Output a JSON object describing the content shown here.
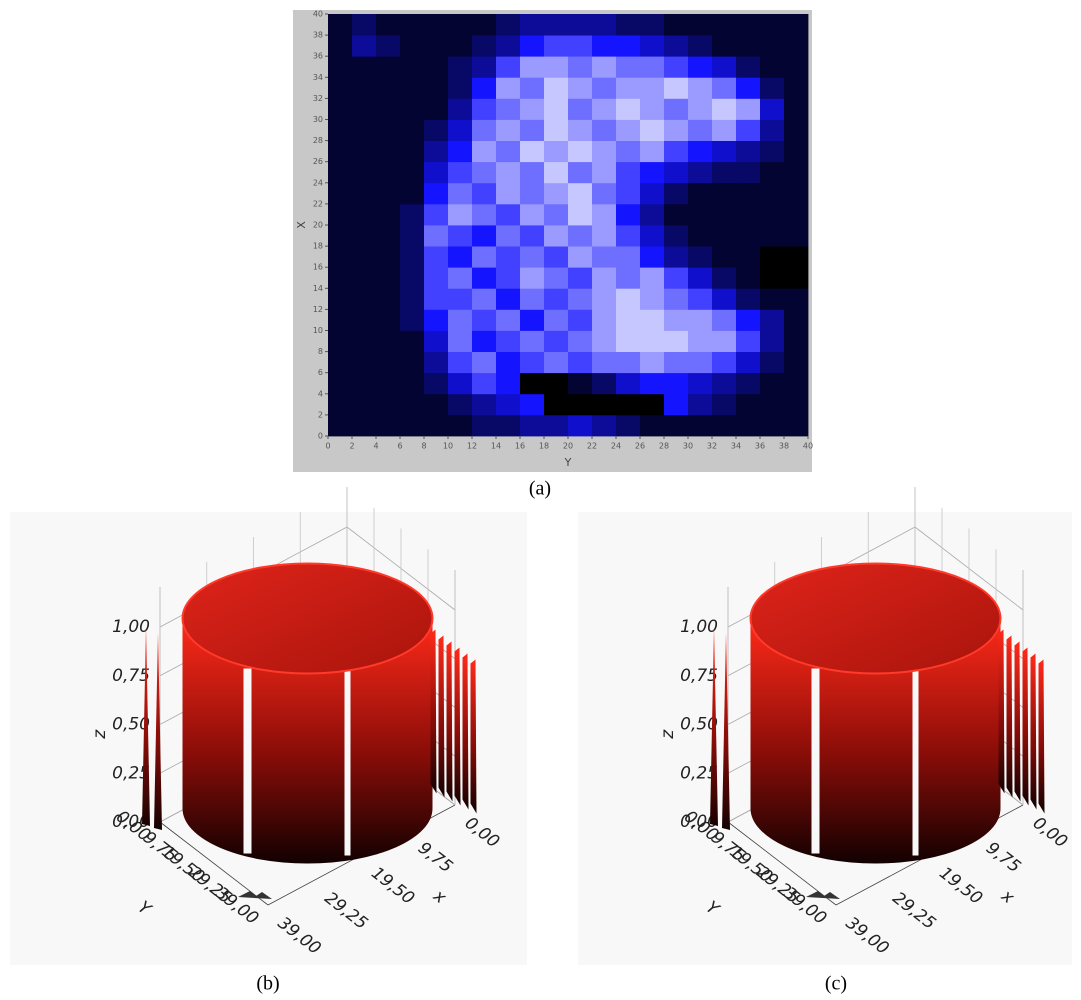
{
  "chart_data": [
    {
      "type": "heatmap",
      "caption": "(a)",
      "xlabel": "Y",
      "ylabel": "X",
      "xlim": [
        0,
        40
      ],
      "ylim": [
        0,
        40
      ],
      "xticks": [
        0,
        2,
        4,
        6,
        8,
        10,
        12,
        14,
        16,
        18,
        20,
        22,
        24,
        26,
        28,
        30,
        32,
        34,
        36,
        38,
        40
      ],
      "yticks": [
        0,
        2,
        4,
        6,
        8,
        10,
        12,
        14,
        16,
        18,
        20,
        22,
        24,
        26,
        28,
        30,
        32,
        34,
        36,
        38,
        40
      ],
      "xbins": [
        0,
        2,
        4,
        6,
        8,
        10,
        12,
        14,
        16,
        18,
        20,
        22,
        24,
        26,
        28,
        30,
        32,
        34,
        36,
        38,
        40
      ],
      "ybins": [
        0,
        2,
        4,
        6,
        8,
        10,
        12,
        14,
        16,
        18,
        20,
        22,
        24,
        26,
        28,
        30,
        32,
        34,
        36,
        38,
        40
      ],
      "colors": [
        "#000000",
        "#1414ff",
        "#f4f4ff"
      ],
      "z": [
        [
          0.1,
          0.1,
          0.1,
          0.1,
          0.1,
          0.1,
          0.2,
          0.2,
          0.3,
          0.3,
          0.4,
          0.3,
          0.2,
          0.1,
          0.1,
          0.1,
          0.1,
          0.1,
          0.1,
          0.1
        ],
        [
          0.1,
          0.1,
          0.1,
          0.1,
          0.1,
          0.2,
          0.3,
          0.4,
          0.5,
          0.0,
          0.0,
          0.0,
          0.0,
          0.0,
          0.5,
          0.3,
          0.2,
          0.1,
          0.1,
          0.1
        ],
        [
          0.1,
          0.1,
          0.1,
          0.1,
          0.2,
          0.4,
          0.6,
          0.5,
          0.0,
          0.0,
          0.1,
          0.2,
          0.4,
          0.5,
          0.5,
          0.4,
          0.3,
          0.2,
          0.1,
          0.1
        ],
        [
          0.1,
          0.1,
          0.1,
          0.1,
          0.3,
          0.6,
          0.7,
          0.5,
          0.6,
          0.7,
          0.6,
          0.7,
          0.7,
          0.8,
          0.7,
          0.7,
          0.6,
          0.4,
          0.2,
          0.1
        ],
        [
          0.1,
          0.1,
          0.1,
          0.1,
          0.4,
          0.7,
          0.5,
          0.6,
          0.7,
          0.6,
          0.7,
          0.8,
          0.9,
          0.9,
          0.9,
          0.8,
          0.8,
          0.6,
          0.3,
          0.1
        ],
        [
          0.1,
          0.1,
          0.1,
          0.2,
          0.5,
          0.7,
          0.6,
          0.7,
          0.5,
          0.7,
          0.6,
          0.8,
          0.9,
          0.9,
          0.8,
          0.8,
          0.7,
          0.5,
          0.3,
          0.1
        ],
        [
          0.1,
          0.1,
          0.1,
          0.2,
          0.6,
          0.6,
          0.7,
          0.5,
          0.7,
          0.6,
          0.7,
          0.8,
          0.9,
          0.8,
          0.7,
          0.6,
          0.4,
          0.2,
          0.1,
          0.1
        ],
        [
          0.1,
          0.1,
          0.1,
          0.2,
          0.6,
          0.7,
          0.5,
          0.6,
          0.8,
          0.7,
          0.6,
          0.8,
          0.7,
          0.8,
          0.6,
          0.4,
          0.2,
          0.1,
          0.0,
          0.0
        ],
        [
          0.1,
          0.1,
          0.1,
          0.2,
          0.6,
          0.5,
          0.7,
          0.6,
          0.7,
          0.6,
          0.8,
          0.7,
          0.7,
          0.5,
          0.3,
          0.2,
          0.1,
          0.1,
          0.0,
          0.0
        ],
        [
          0.1,
          0.1,
          0.1,
          0.2,
          0.7,
          0.6,
          0.5,
          0.7,
          0.6,
          0.8,
          0.7,
          0.8,
          0.6,
          0.4,
          0.2,
          0.1,
          0.1,
          0.1,
          0.1,
          0.1
        ],
        [
          0.1,
          0.1,
          0.1,
          0.2,
          0.6,
          0.8,
          0.7,
          0.6,
          0.8,
          0.7,
          0.9,
          0.8,
          0.5,
          0.3,
          0.1,
          0.1,
          0.1,
          0.1,
          0.1,
          0.1
        ],
        [
          0.1,
          0.1,
          0.1,
          0.1,
          0.5,
          0.7,
          0.6,
          0.8,
          0.7,
          0.8,
          0.9,
          0.7,
          0.6,
          0.4,
          0.2,
          0.1,
          0.1,
          0.1,
          0.1,
          0.1
        ],
        [
          0.1,
          0.1,
          0.1,
          0.1,
          0.4,
          0.6,
          0.7,
          0.8,
          0.7,
          0.9,
          0.7,
          0.8,
          0.6,
          0.5,
          0.4,
          0.3,
          0.2,
          0.2,
          0.1,
          0.1
        ],
        [
          0.1,
          0.1,
          0.1,
          0.1,
          0.3,
          0.5,
          0.8,
          0.7,
          0.9,
          0.8,
          0.9,
          0.8,
          0.7,
          0.8,
          0.6,
          0.5,
          0.4,
          0.3,
          0.2,
          0.1
        ],
        [
          0.1,
          0.1,
          0.1,
          0.1,
          0.2,
          0.4,
          0.7,
          0.8,
          0.7,
          0.9,
          0.8,
          0.7,
          0.8,
          0.9,
          0.8,
          0.7,
          0.8,
          0.6,
          0.3,
          0.1
        ],
        [
          0.1,
          0.1,
          0.1,
          0.1,
          0.1,
          0.3,
          0.6,
          0.7,
          0.8,
          0.9,
          0.7,
          0.8,
          0.9,
          0.8,
          0.7,
          0.8,
          0.9,
          0.8,
          0.4,
          0.1
        ],
        [
          0.1,
          0.1,
          0.1,
          0.1,
          0.1,
          0.2,
          0.5,
          0.8,
          0.7,
          0.9,
          0.8,
          0.7,
          0.8,
          0.8,
          0.9,
          0.8,
          0.7,
          0.5,
          0.2,
          0.1
        ],
        [
          0.1,
          0.1,
          0.1,
          0.1,
          0.1,
          0.2,
          0.3,
          0.6,
          0.8,
          0.8,
          0.7,
          0.8,
          0.7,
          0.7,
          0.6,
          0.5,
          0.4,
          0.2,
          0.1,
          0.1
        ],
        [
          0.1,
          0.3,
          0.2,
          0.1,
          0.1,
          0.1,
          0.2,
          0.3,
          0.5,
          0.6,
          0.6,
          0.5,
          0.5,
          0.4,
          0.3,
          0.2,
          0.1,
          0.1,
          0.1,
          0.1
        ],
        [
          0.1,
          0.2,
          0.1,
          0.1,
          0.1,
          0.1,
          0.1,
          0.2,
          0.3,
          0.3,
          0.3,
          0.3,
          0.2,
          0.2,
          0.1,
          0.1,
          0.1,
          0.1,
          0.1,
          0.1
        ]
      ]
    },
    {
      "type": "surface3d",
      "caption": "(b)",
      "xlabel": "x",
      "ylabel": "Y",
      "zlabel": "z",
      "color": "#d81a10",
      "xlim": [
        0,
        39
      ],
      "ylim": [
        0,
        39
      ],
      "zlim": [
        0,
        1
      ],
      "xticks": [
        {
          "value": 0,
          "label": "0,00"
        },
        {
          "value": 9.75,
          "label": "9,75"
        },
        {
          "value": 19.5,
          "label": "19,50"
        },
        {
          "value": 29.25,
          "label": "29,25"
        },
        {
          "value": 39,
          "label": "39,00"
        }
      ],
      "yticks": [
        {
          "value": 0,
          "label": "0,00"
        },
        {
          "value": 9.75,
          "label": "9,75"
        },
        {
          "value": 19.5,
          "label": "19,50"
        },
        {
          "value": 29.25,
          "label": "29,25"
        },
        {
          "value": 39,
          "label": "39,00"
        }
      ],
      "zticks": [
        {
          "value": 0,
          "label": "0,00"
        },
        {
          "value": 0.25,
          "label": "0,25"
        },
        {
          "value": 0.5,
          "label": "0,50"
        },
        {
          "value": 0.75,
          "label": "0,75"
        },
        {
          "value": 1,
          "label": "1,00"
        }
      ]
    },
    {
      "type": "surface3d",
      "caption": "(c)",
      "xlabel": "x",
      "ylabel": "Y",
      "zlabel": "z",
      "color": "#d81a10",
      "xlim": [
        0,
        39
      ],
      "ylim": [
        0,
        39
      ],
      "zlim": [
        0,
        1
      ],
      "xticks": [
        {
          "value": 0,
          "label": "0,00"
        },
        {
          "value": 9.75,
          "label": "9,75"
        },
        {
          "value": 19.5,
          "label": "19,50"
        },
        {
          "value": 29.25,
          "label": "29,25"
        },
        {
          "value": 39,
          "label": "39,00"
        }
      ],
      "yticks": [
        {
          "value": 0,
          "label": "0,00"
        },
        {
          "value": 9.75,
          "label": "9,75"
        },
        {
          "value": 19.5,
          "label": "19,50"
        },
        {
          "value": 29.25,
          "label": "29,25"
        },
        {
          "value": 39,
          "label": "39,00"
        }
      ],
      "zticks": [
        {
          "value": 0,
          "label": "0,00"
        },
        {
          "value": 0.25,
          "label": "0,25"
        },
        {
          "value": 0.5,
          "label": "0,50"
        },
        {
          "value": 0.75,
          "label": "0,75"
        },
        {
          "value": 1,
          "label": "1,00"
        }
      ]
    }
  ]
}
